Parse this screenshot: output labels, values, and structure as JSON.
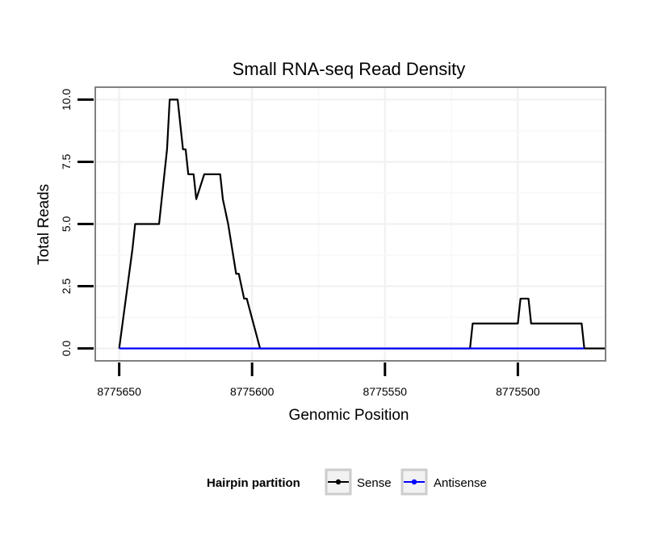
{
  "chart_data": {
    "type": "line",
    "title": "Small RNA-seq Read Density",
    "xlabel": "Genomic Position",
    "ylabel": "Total Reads",
    "x_reversed": true,
    "xlim": [
      8775659,
      8775467
    ],
    "ylim": [
      -0.5,
      10.5
    ],
    "x_ticks": [
      8775650,
      8775600,
      8775550,
      8775500
    ],
    "x_tick_labels": [
      "8775650",
      "8775600",
      "8775550",
      "8775500"
    ],
    "y_ticks": [
      0,
      2.5,
      5,
      7.5,
      10
    ],
    "y_tick_labels": [
      "0.0",
      "2.5",
      "5.0",
      "7.5",
      "10.0"
    ],
    "grid": true,
    "legend": {
      "title": "Hairpin partition",
      "position": "bottom"
    },
    "series": [
      {
        "name": "Sense",
        "color": "#000000",
        "x": [
          8775650,
          8775645,
          8775644,
          8775635,
          8775634,
          8775633,
          8775632,
          8775631,
          8775628,
          8775627,
          8775626,
          8775625,
          8775624,
          8775622,
          8775621,
          8775618,
          8775616,
          8775615,
          8775614,
          8775613,
          8775612,
          8775611,
          8775609,
          8775606,
          8775605,
          8775603,
          8775602,
          8775597,
          8775596,
          8775595,
          8775594,
          8775593,
          8775592,
          8775591,
          8775590,
          8775582,
          8775581,
          8775562,
          8775561,
          8775545,
          8775544,
          8775543,
          8775542,
          8775541,
          8775540,
          8775539,
          8775538,
          8775530,
          8775529,
          8775518,
          8775517,
          8775500,
          8775499,
          8775498,
          8775497,
          8775496,
          8775495,
          8775494,
          8775476,
          8775475,
          8775467
        ],
        "values": [
          0,
          4,
          5,
          5,
          6,
          7,
          8,
          10,
          10,
          9,
          8,
          8,
          7,
          7,
          6,
          7,
          7,
          7,
          7,
          7,
          7,
          6,
          5,
          3,
          3,
          2,
          2,
          0,
          0,
          0,
          0,
          0,
          0,
          0,
          0,
          0,
          0,
          0,
          0,
          0,
          0,
          0,
          0,
          0,
          0,
          0,
          0,
          0,
          0,
          0,
          1,
          1,
          2,
          2,
          2,
          2,
          1,
          1,
          1,
          0,
          0
        ]
      },
      {
        "name": "Antisense",
        "color": "#0000ff",
        "x": [
          8775650,
          8775475
        ],
        "values": [
          0,
          0
        ]
      }
    ]
  }
}
